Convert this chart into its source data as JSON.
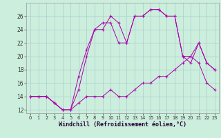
{
  "xlabel": "Windchill (Refroidissement éolien,°C)",
  "hours": [
    0,
    1,
    2,
    3,
    4,
    5,
    6,
    7,
    8,
    9,
    10,
    11,
    12,
    13,
    14,
    15,
    16,
    17,
    18,
    19,
    20,
    21,
    22,
    23
  ],
  "temp1": [
    14,
    14,
    14,
    13,
    12,
    12,
    17,
    21,
    24,
    24,
    26,
    25,
    22,
    26,
    26,
    27,
    27,
    26,
    26,
    20,
    20,
    22,
    19,
    18
  ],
  "temp2": [
    14,
    14,
    14,
    13,
    12,
    12,
    15,
    20,
    24,
    25,
    25,
    22,
    22,
    26,
    26,
    27,
    27,
    26,
    26,
    20,
    19,
    22,
    19,
    18
  ],
  "temp3": [
    14,
    14,
    14,
    13,
    12,
    12,
    13,
    14,
    14,
    14,
    15,
    14,
    14,
    15,
    16,
    16,
    17,
    17,
    18,
    19,
    20,
    19,
    16,
    15
  ],
  "line_color": "#aa00aa",
  "bg_color": "#cceedd",
  "grid_color": "#aacccc",
  "ylim": [
    11.5,
    28
  ],
  "xlim": [
    -0.5,
    23.5
  ],
  "yticks": [
    12,
    14,
    16,
    18,
    20,
    22,
    24,
    26
  ],
  "xticks": [
    0,
    1,
    2,
    3,
    4,
    5,
    6,
    7,
    8,
    9,
    10,
    11,
    12,
    13,
    14,
    15,
    16,
    17,
    18,
    19,
    20,
    21,
    22,
    23
  ],
  "tick_fontsize": 5.5,
  "xlabel_fontsize": 6.0
}
